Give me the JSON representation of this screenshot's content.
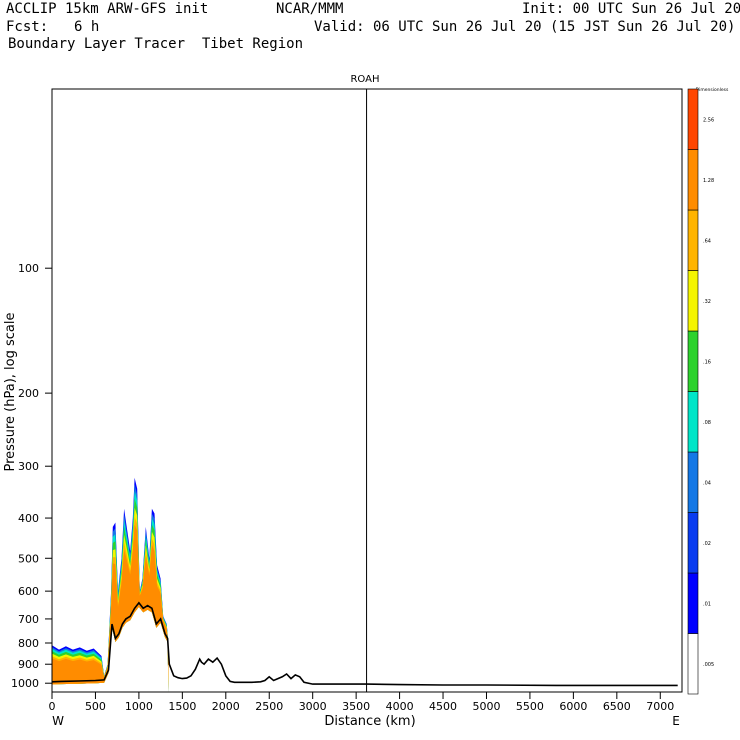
{
  "header": {
    "model_line": "ACCLIP 15km ARW-GFS init",
    "org": "NCAR/MMM",
    "init": "Init: 00 UTC Sun 26 Jul 20",
    "fcst_label": "Fcst:",
    "fcst_value": "6 h",
    "valid": "Valid: 06 UTC Sun 26 Jul 20 (15 JST Sun 26 Jul 20)",
    "product": "Boundary Layer Tracer  Tibet Region"
  },
  "chart_data": {
    "type": "area",
    "title": "ROAH",
    "xlabel": "Distance (km)",
    "ylabel": "Pressure (hPa), log scale",
    "xlim": [
      0,
      7250
    ],
    "ylim": [
      1050,
      37
    ],
    "x_ticks": [
      0,
      500,
      1000,
      1500,
      2000,
      2500,
      3000,
      3500,
      4000,
      4500,
      5000,
      5500,
      6000,
      6500,
      7000
    ],
    "y_ticks": [
      100,
      200,
      300,
      400,
      500,
      600,
      700,
      800,
      900,
      1000
    ],
    "x_end_labels": {
      "left": "W",
      "right": "E"
    },
    "station_marker_km": 3620,
    "terrain_surface_hPa": {
      "x": [
        0,
        100,
        300,
        500,
        600,
        650,
        690,
        730,
        770,
        810,
        850,
        900,
        950,
        1000,
        1050,
        1100,
        1150,
        1200,
        1250,
        1300,
        1330,
        1350,
        1400,
        1450,
        1500,
        1550,
        1600,
        1650,
        1700,
        1720,
        1750,
        1800,
        1850,
        1900,
        1950,
        2000,
        2050,
        2100,
        2200,
        2300,
        2400,
        2450,
        2500,
        2550,
        2600,
        2650,
        2700,
        2750,
        2800,
        2850,
        2900,
        3000,
        3500,
        3620,
        4000,
        4500,
        5000,
        5800,
        6500,
        7200
      ],
      "p": [
        992,
        990,
        988,
        985,
        982,
        930,
        720,
        780,
        760,
        720,
        700,
        690,
        660,
        640,
        660,
        650,
        660,
        720,
        700,
        760,
        780,
        900,
        960,
        970,
        975,
        972,
        960,
        925,
        875,
        890,
        900,
        875,
        890,
        870,
        900,
        960,
        990,
        995,
        995,
        995,
        992,
        985,
        965,
        985,
        975,
        965,
        950,
        975,
        955,
        965,
        995,
        1005,
        1005,
        1005,
        1008,
        1010,
        1010,
        1012,
        1012,
        1012
      ]
    },
    "tracer_top_hPa": {
      "x": [
        0,
        80,
        160,
        240,
        320,
        400,
        480,
        570,
        600,
        640,
        680,
        700,
        730,
        760,
        800,
        830,
        860,
        900,
        930,
        950,
        980,
        1010,
        1040,
        1080,
        1120,
        1150,
        1180,
        1210,
        1250,
        1280,
        1320,
        1340
      ],
      "p": [
        810,
        830,
        815,
        830,
        820,
        835,
        825,
        860,
        960,
        900,
        600,
        420,
        410,
        600,
        500,
        380,
        420,
        480,
        400,
        320,
        340,
        600,
        560,
        420,
        500,
        380,
        390,
        520,
        560,
        690,
        720,
        800
      ]
    },
    "colorbar": {
      "title": "Dimensionless",
      "levels": [
        ".005",
        ".01",
        ".02",
        ".04",
        ".08",
        ".16",
        ".32",
        ".64",
        "1.28",
        "2.56"
      ],
      "colors": [
        "#ffffff",
        "#0000ff",
        "#0a3cf0",
        "#1478e6",
        "#00e6c8",
        "#2dd22d",
        "#f5f500",
        "#ffb400",
        "#ff8c00",
        "#ff4600"
      ]
    }
  }
}
